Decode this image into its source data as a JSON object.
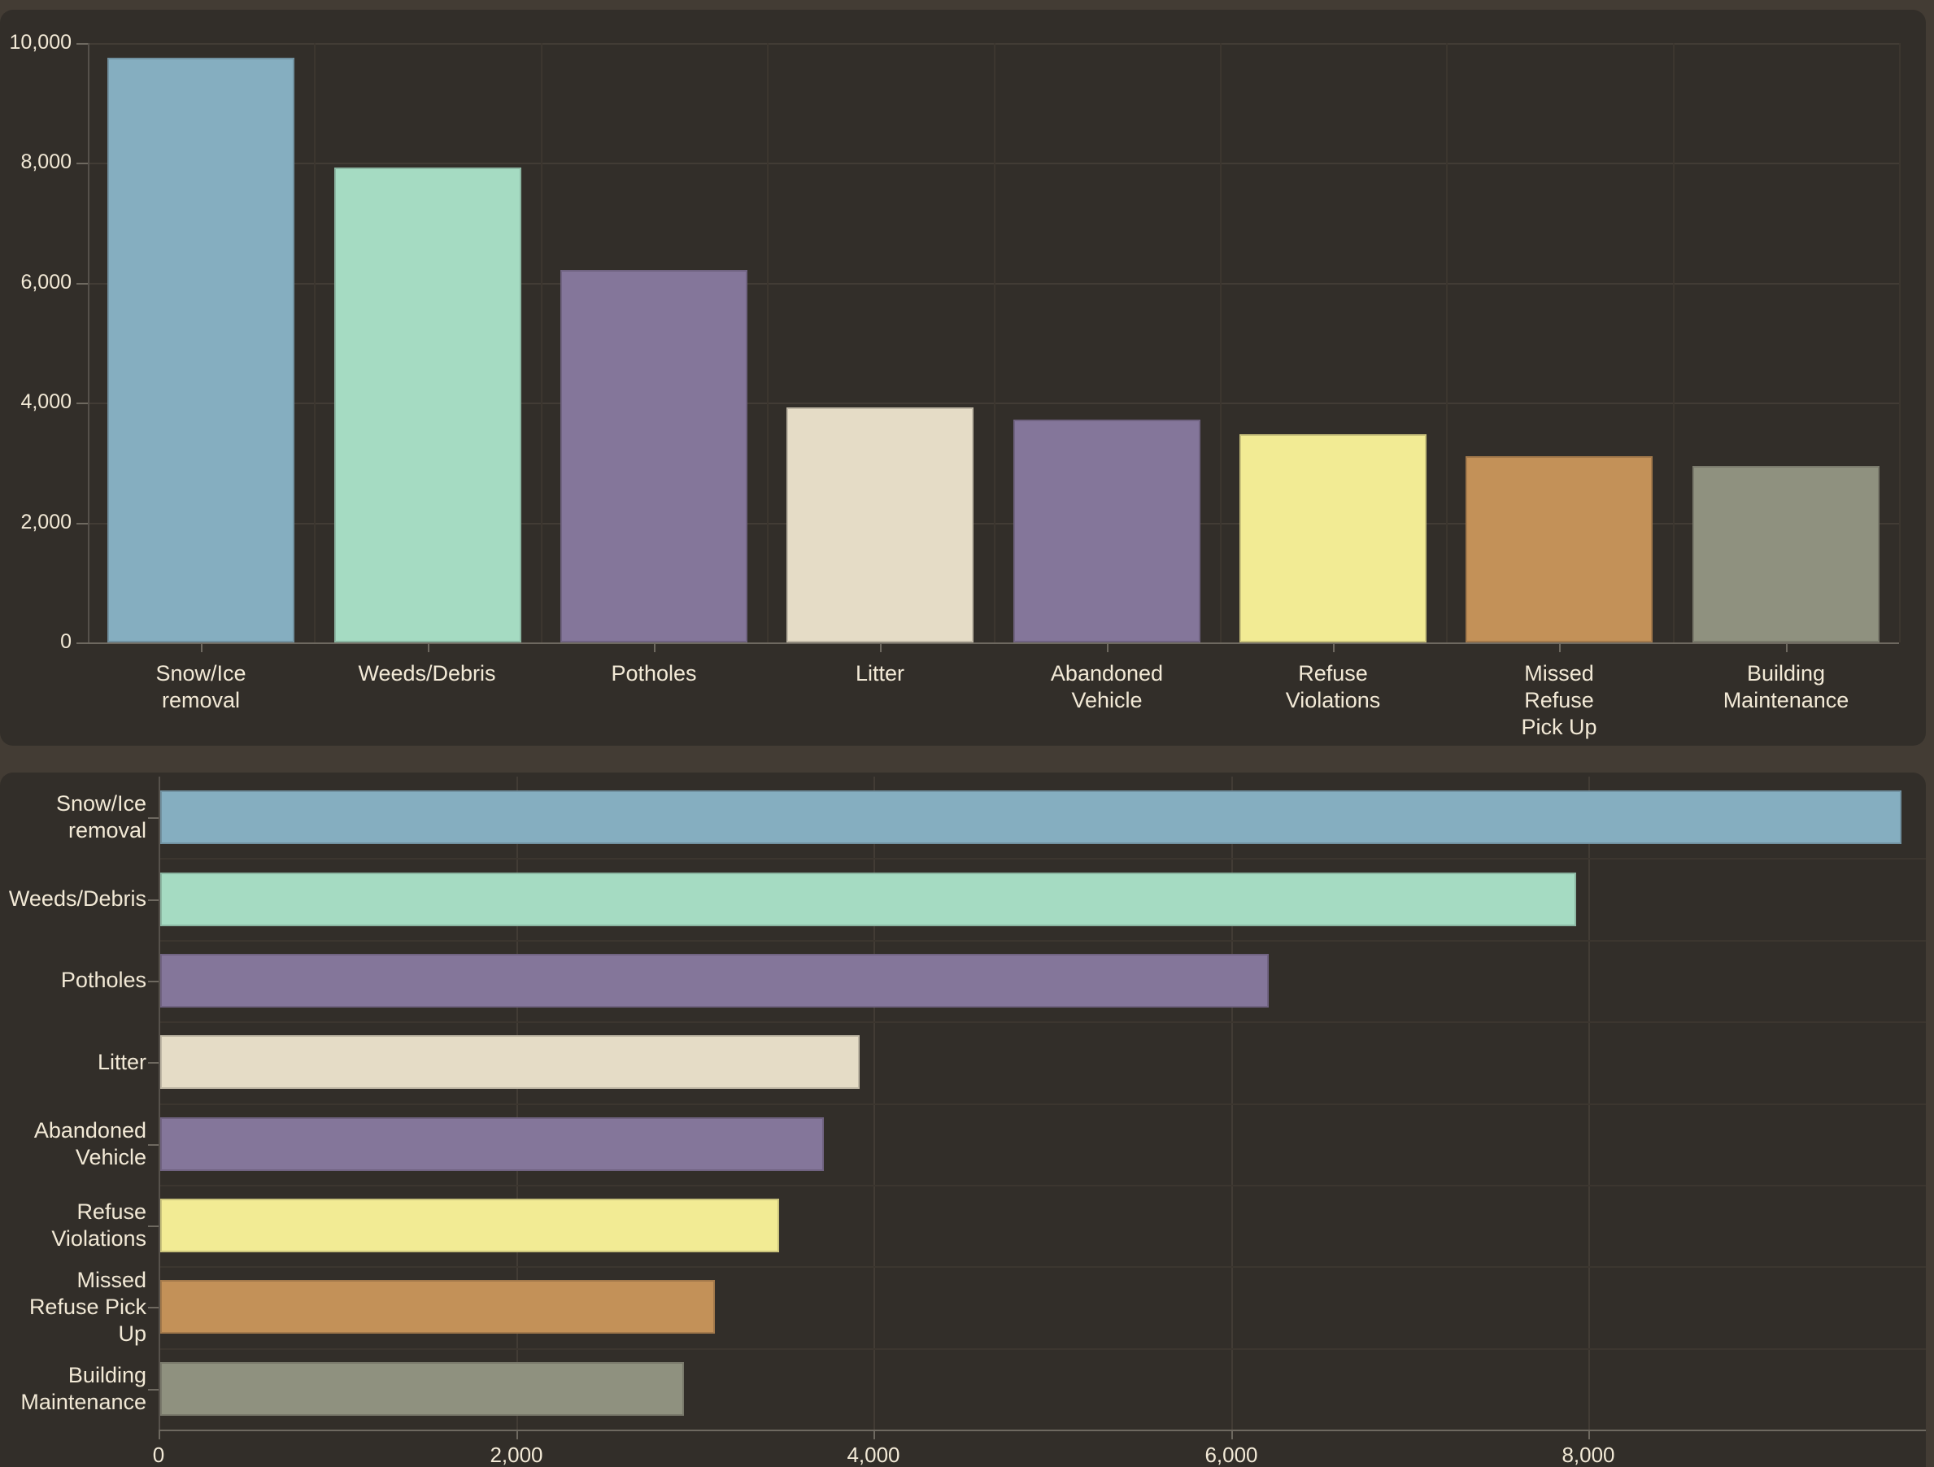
{
  "theme": {
    "body_bg": "#433C34",
    "panel_bg": "#322E29",
    "grid_color": "#423C35",
    "grid_color_soft": "#3C362F",
    "axis_line_color": "#6E6960",
    "axis_line_subtle": "#56514B",
    "text_color": "#F2E9D6"
  },
  "chart_data": [
    {
      "id": "service-requests-column-chart",
      "type": "bar",
      "orientation": "vertical",
      "title": "",
      "xlabel": "",
      "ylabel": "",
      "categories": [
        "Snow/Ice removal",
        "Weeds/Debris",
        "Potholes",
        "Litter",
        "Abandoned Vehicle",
        "Refuse Violations",
        "Missed Refuse Pick Up",
        "Building Maintenance"
      ],
      "category_label_lines": [
        [
          "Snow/Ice",
          "removal"
        ],
        [
          "Weeds/Debris"
        ],
        [
          "Potholes"
        ],
        [
          "Litter"
        ],
        [
          "Abandoned",
          "Vehicle"
        ],
        [
          "Refuse",
          "Violations"
        ],
        [
          "Missed",
          "Refuse",
          "Pick Up"
        ],
        [
          "Building",
          "Maintenance"
        ]
      ],
      "values": [
        9750,
        7930,
        6210,
        3920,
        3720,
        3470,
        3110,
        2940
      ],
      "colors": [
        "#85AEC0",
        "#A5DBC2",
        "#84769A",
        "#E5DCC6",
        "#84769A",
        "#F2EB94",
        "#C39158",
        "#8F917F"
      ],
      "ylim": [
        0,
        10000
      ],
      "ytick_values": [
        0,
        2000,
        4000,
        6000,
        8000,
        10000
      ],
      "ytick_labels": [
        "0",
        "2,000",
        "4,000",
        "6,000",
        "8,000",
        "10,000"
      ],
      "grid": true,
      "legend": false
    },
    {
      "id": "service-requests-bar-chart",
      "type": "bar",
      "orientation": "horizontal",
      "title": "",
      "xlabel": "",
      "ylabel": "",
      "categories": [
        "Snow/Ice removal",
        "Weeds/Debris",
        "Potholes",
        "Litter",
        "Abandoned Vehicle",
        "Refuse Violations",
        "Missed Refuse Pick Up",
        "Building Maintenance"
      ],
      "category_label_lines": [
        [
          "Snow/Ice",
          "removal"
        ],
        [
          "Weeds/Debris"
        ],
        [
          "Potholes"
        ],
        [
          "Litter"
        ],
        [
          "Abandoned",
          "Vehicle"
        ],
        [
          "Refuse",
          "Violations"
        ],
        [
          "Missed",
          "Refuse Pick",
          "Up"
        ],
        [
          "Building",
          "Maintenance"
        ]
      ],
      "values": [
        9750,
        7930,
        6210,
        3920,
        3720,
        3470,
        3110,
        2940
      ],
      "colors": [
        "#85AEC0",
        "#A5DBC2",
        "#84769A",
        "#E5DCC6",
        "#84769A",
        "#F2EB94",
        "#C39158",
        "#8F917F"
      ],
      "xlim": [
        0,
        9750
      ],
      "xtick_values": [
        0,
        2000,
        4000,
        6000,
        8000
      ],
      "xtick_labels": [
        "0",
        "2,000",
        "4,000",
        "6,000",
        "8,000"
      ],
      "grid": true,
      "legend": false
    }
  ]
}
